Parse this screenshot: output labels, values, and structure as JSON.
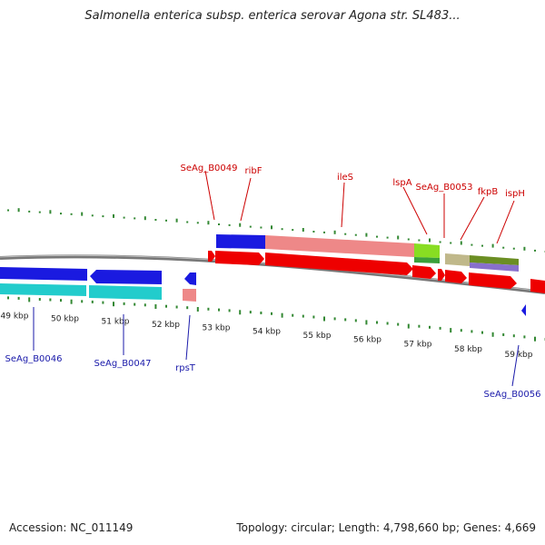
{
  "title": "Salmonella enterica subsp. enterica serovar Agona str. SL483...",
  "accession": "Accession: NC_011149",
  "summary": "Topology: circular; Length: 4,798,660 bp; Genes: 4,669",
  "colors": {
    "forward_gene": "#ee0000",
    "reverse_gene": "#1010dd",
    "forward_label": "#cc0000",
    "reverse_label": "#1a1aaa",
    "gc_tick": "#338833",
    "backbone": "#888888"
  },
  "kbp_labels": [
    {
      "kbp": 49,
      "text": "49 kbp"
    },
    {
      "kbp": 50,
      "text": "50 kbp"
    },
    {
      "kbp": 51,
      "text": "51 kbp"
    },
    {
      "kbp": 52,
      "text": "52 kbp"
    },
    {
      "kbp": 53,
      "text": "53 kbp"
    },
    {
      "kbp": 54,
      "text": "54 kbp"
    },
    {
      "kbp": 55,
      "text": "55 kbp"
    },
    {
      "kbp": 56,
      "text": "56 kbp"
    },
    {
      "kbp": 57,
      "text": "57 kbp"
    },
    {
      "kbp": 58,
      "text": "58 kbp"
    },
    {
      "kbp": 59,
      "text": "59 kbp"
    }
  ],
  "forward_gene_labels": [
    "SeAg_B0049",
    "ribF",
    "ileS",
    "lspA",
    "SeAg_B0053",
    "fkpB",
    "ispH"
  ],
  "reverse_gene_labels": [
    "SeAg_B0046",
    "SeAg_B0047",
    "rpsT",
    "SeAg_B0056"
  ]
}
